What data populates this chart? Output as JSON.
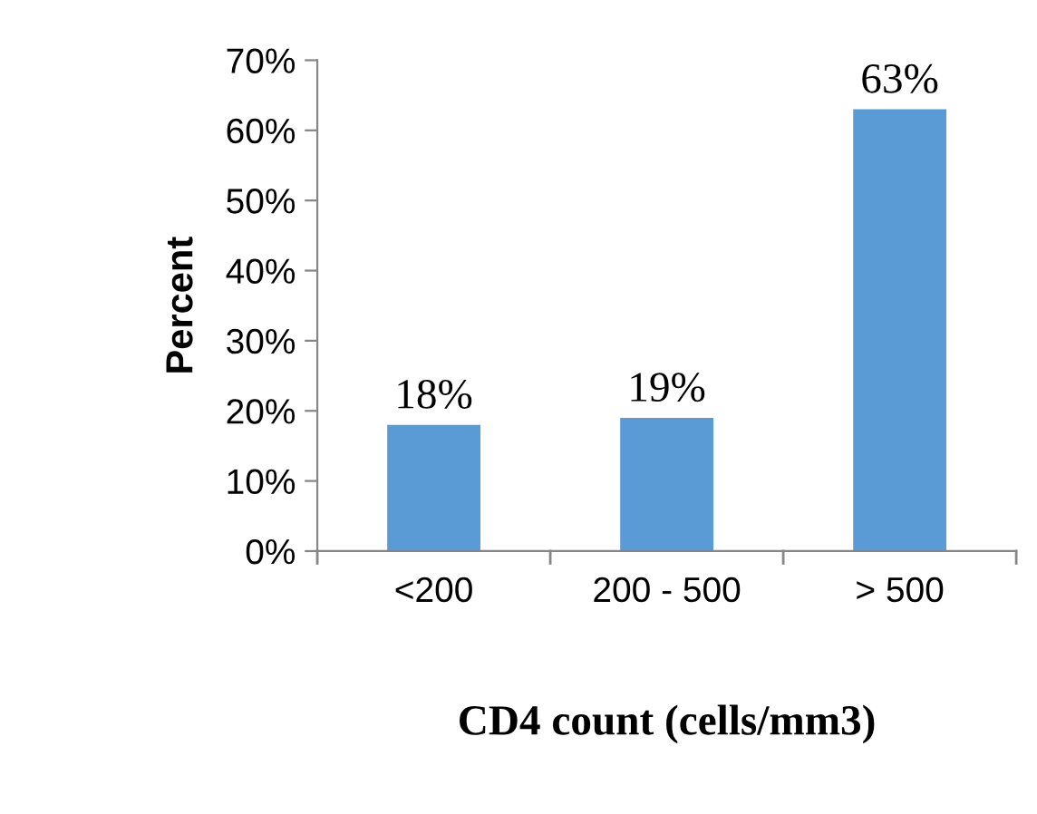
{
  "chart_data": {
    "type": "bar",
    "xlabel": "CD4 count (cells/mm3)",
    "ylabel": "Percent",
    "categories": [
      "<200",
      "200 - 500",
      "> 500"
    ],
    "values": [
      18,
      19,
      63
    ],
    "color": "#5b9bd5",
    "value_labels": [
      "18%",
      "19%",
      "63%"
    ],
    "ylim": [
      0,
      70
    ],
    "yticks": [
      {
        "value": 0,
        "label": "0%"
      },
      {
        "value": 10,
        "label": "10%"
      },
      {
        "value": 20,
        "label": "20%"
      },
      {
        "value": 30,
        "label": "30%"
      },
      {
        "value": 40,
        "label": "40%"
      },
      {
        "value": 50,
        "label": "50%"
      },
      {
        "value": 60,
        "label": "60%"
      },
      {
        "value": 70,
        "label": "70%"
      }
    ],
    "grid": false,
    "legend": false
  }
}
